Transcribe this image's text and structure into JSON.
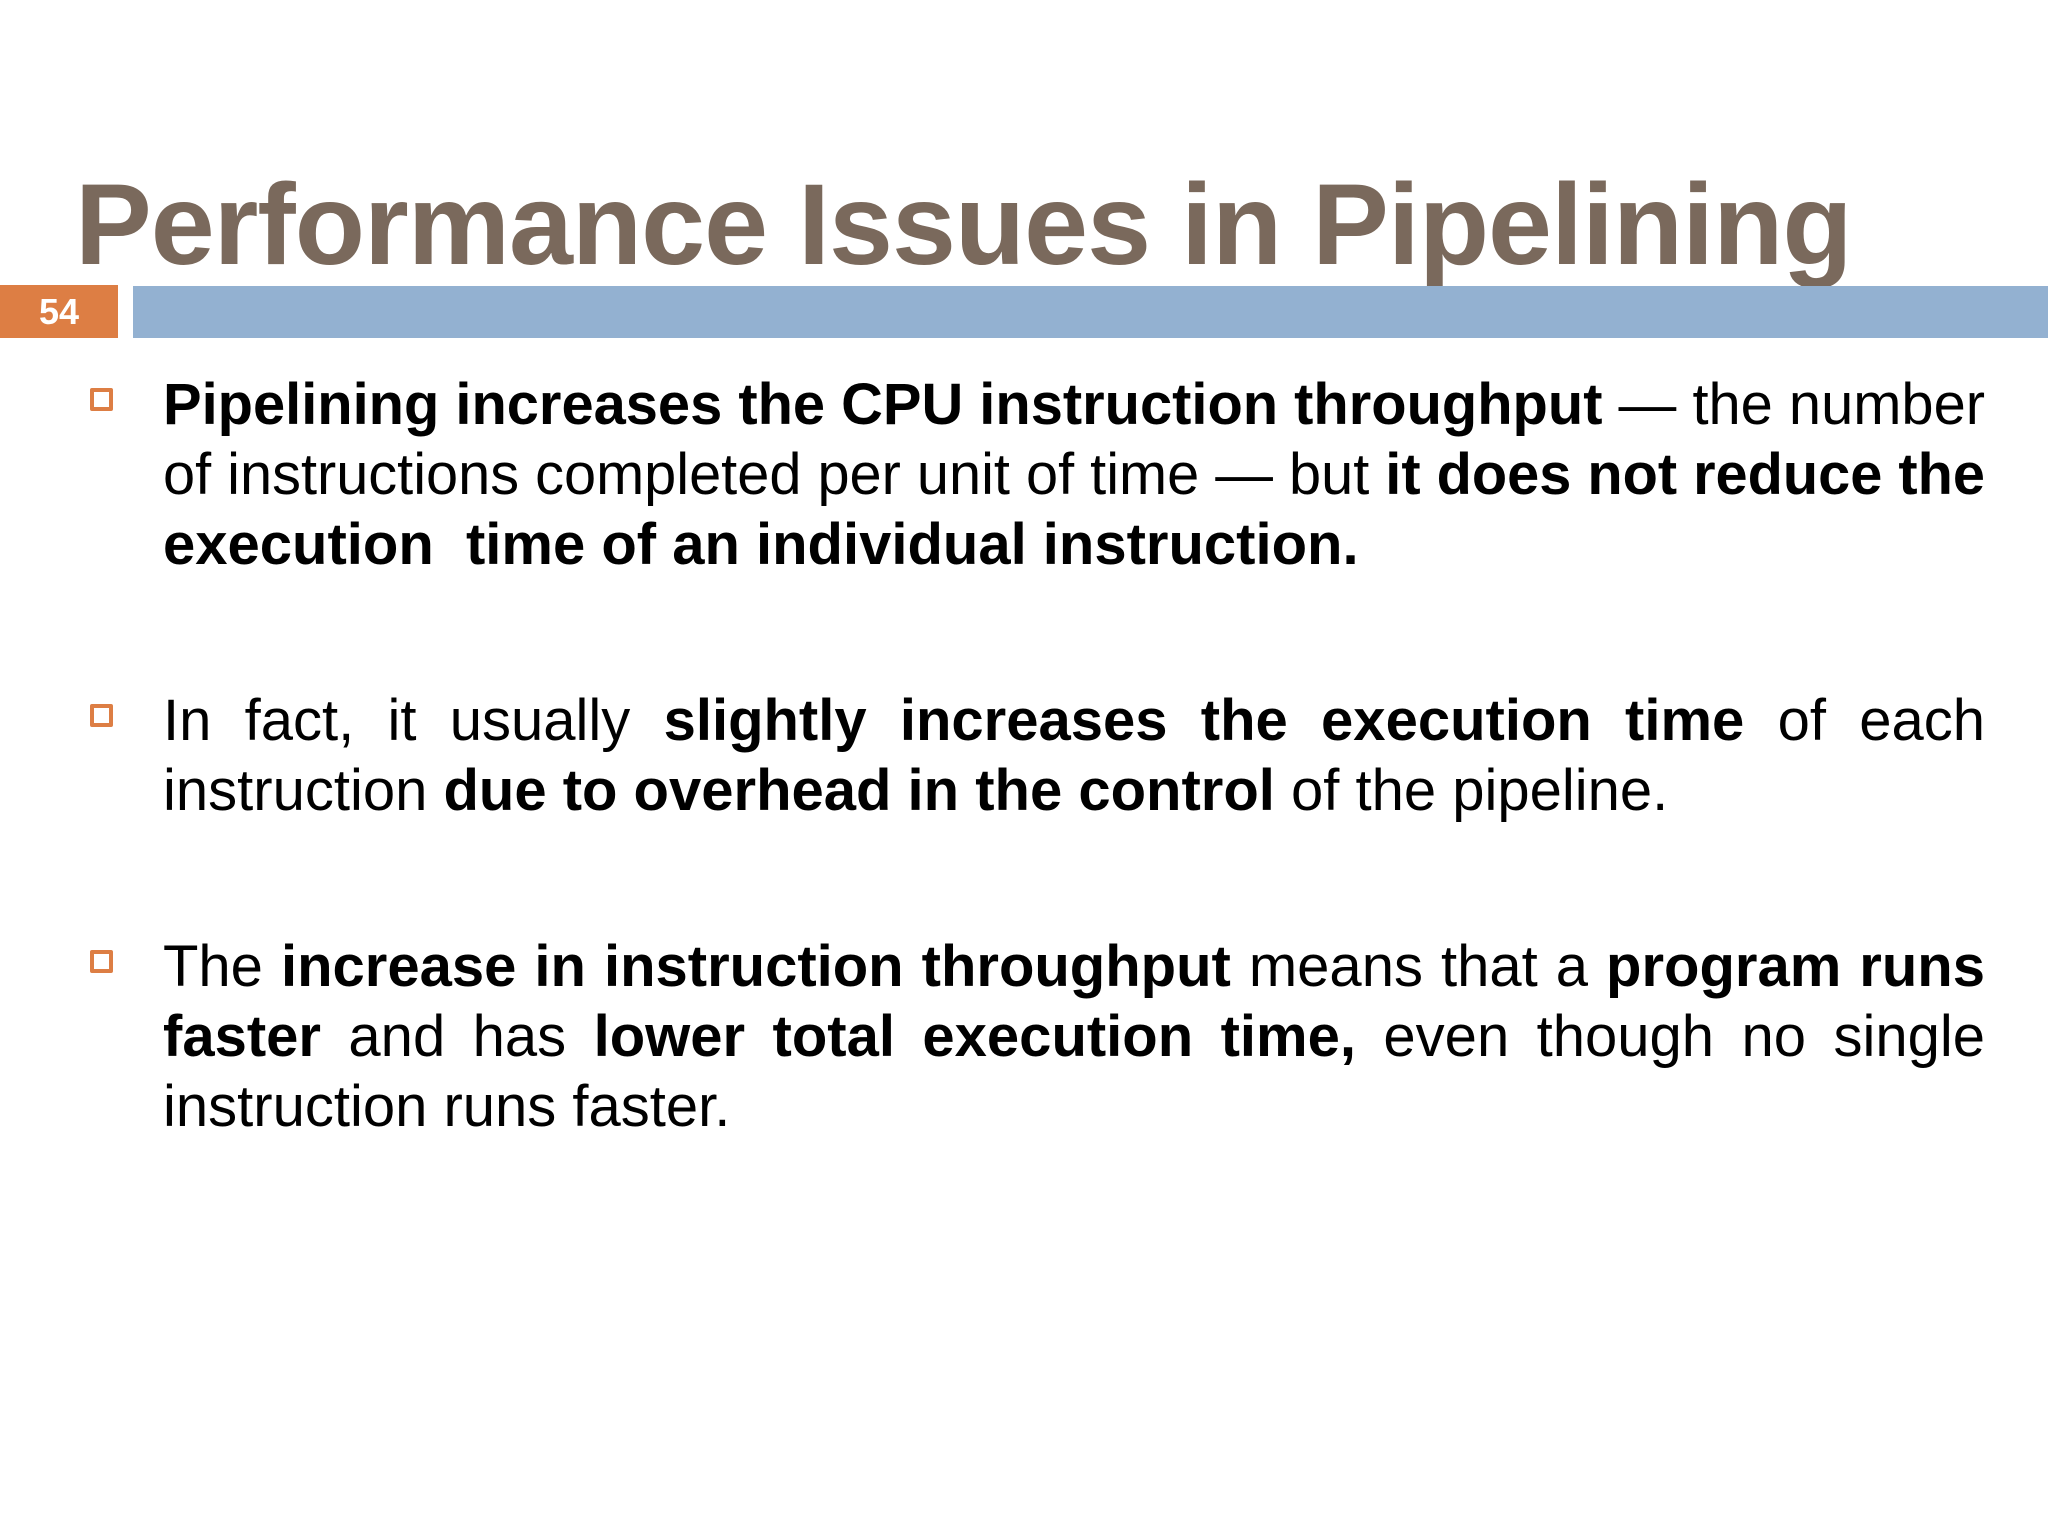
{
  "slide": {
    "title": "Performance Issues in Pipelining",
    "page_number": "54"
  },
  "colors": {
    "title": "#7a695c",
    "accent_orange": "#dd7e44",
    "bar_blue": "#93b1d1",
    "body_text": "#000000",
    "background": "#ffffff",
    "page_number_text": "#ffffff"
  },
  "icons": {
    "bullet_marker": "hollow-square"
  },
  "bullets": [
    {
      "lines": [
        {
          "justify": true,
          "segments": [
            {
              "text": "Pipelining increases the CPU instruction throughput",
              "bold": true
            },
            {
              "text": " — the number",
              "bold": false
            }
          ]
        },
        {
          "justify": true,
          "segments": [
            {
              "text": "of instructions completed per unit of time — but ",
              "bold": false
            },
            {
              "text": "it does not reduce the",
              "bold": true
            }
          ]
        },
        {
          "justify": false,
          "segments": [
            {
              "text": "execution  time of an individual instruction.",
              "bold": true
            }
          ]
        }
      ]
    },
    {
      "lines": [
        {
          "justify": true,
          "segments": [
            {
              "text": "In fact, it usually ",
              "bold": false
            },
            {
              "text": "slightly increases the execution time",
              "bold": true
            },
            {
              "text": " of each",
              "bold": false
            }
          ]
        },
        {
          "justify": false,
          "segments": [
            {
              "text": "instruction ",
              "bold": false
            },
            {
              "text": "due to overhead in the control",
              "bold": true
            },
            {
              "text": " of the pipeline.",
              "bold": false
            }
          ]
        }
      ]
    },
    {
      "lines": [
        {
          "justify": true,
          "segments": [
            {
              "text": "The ",
              "bold": false
            },
            {
              "text": "increase in instruction throughput",
              "bold": true
            },
            {
              "text": " means that a ",
              "bold": false
            },
            {
              "text": "program runs",
              "bold": true
            }
          ]
        },
        {
          "justify": true,
          "segments": [
            {
              "text": "faster",
              "bold": true
            },
            {
              "text": " and has ",
              "bold": false
            },
            {
              "text": "lower total execution time,",
              "bold": true
            },
            {
              "text": " even though no single",
              "bold": false
            }
          ]
        },
        {
          "justify": false,
          "segments": [
            {
              "text": "instruction runs faster.",
              "bold": false
            }
          ]
        }
      ]
    }
  ]
}
